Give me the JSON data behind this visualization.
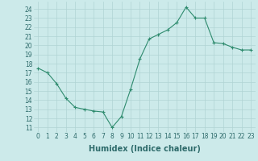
{
  "x": [
    0,
    1,
    2,
    3,
    4,
    5,
    6,
    7,
    8,
    9,
    10,
    11,
    12,
    13,
    14,
    15,
    16,
    17,
    18,
    19,
    20,
    21,
    22,
    23
  ],
  "y": [
    17.5,
    17.0,
    15.8,
    14.2,
    13.2,
    13.0,
    12.8,
    12.7,
    11.0,
    12.2,
    15.2,
    18.5,
    20.7,
    21.2,
    21.7,
    22.5,
    24.2,
    23.0,
    23.0,
    20.3,
    20.2,
    19.8,
    19.5,
    19.5
  ],
  "line_color": "#2e8b6e",
  "marker": "+",
  "marker_size": 3,
  "marker_linewidth": 0.8,
  "line_width": 0.8,
  "bg_color": "#cceaea",
  "grid_color": "#b0d4d4",
  "xlabel": "Humidex (Indice chaleur)",
  "ylabel_ticks": [
    11,
    12,
    13,
    14,
    15,
    16,
    17,
    18,
    19,
    20,
    21,
    22,
    23,
    24
  ],
  "ylim": [
    10.5,
    24.8
  ],
  "xlim": [
    -0.5,
    23.5
  ],
  "xtick_labels": [
    "0",
    "1",
    "2",
    "3",
    "4",
    "5",
    "6",
    "7",
    "8",
    "9",
    "10",
    "11",
    "12",
    "13",
    "14",
    "15",
    "16",
    "17",
    "18",
    "19",
    "20",
    "21",
    "22",
    "23"
  ],
  "tick_fontsize": 5.5,
  "xlabel_fontsize": 7
}
